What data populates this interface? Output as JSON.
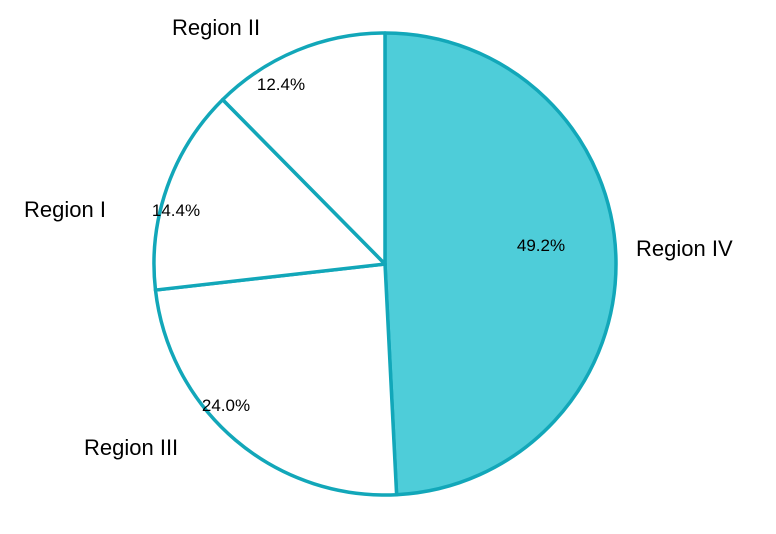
{
  "chart_data": {
    "type": "pie",
    "slices": [
      {
        "label": "Region IV",
        "value": 49.2,
        "value_label": "49.2%",
        "color": "#4ecdd9"
      },
      {
        "label": "Region III",
        "value": 24.0,
        "value_label": "24.0%",
        "color": "#ffffff"
      },
      {
        "label": "Region I",
        "value": 14.4,
        "value_label": "14.4%",
        "color": "#ffffff"
      },
      {
        "label": "Region II",
        "value": 12.4,
        "value_label": "12.4%",
        "color": "#ffffff"
      }
    ],
    "start_angle": "12 o'clock",
    "direction": "clockwise",
    "border_color": "#12a7b9",
    "legend": "none"
  }
}
